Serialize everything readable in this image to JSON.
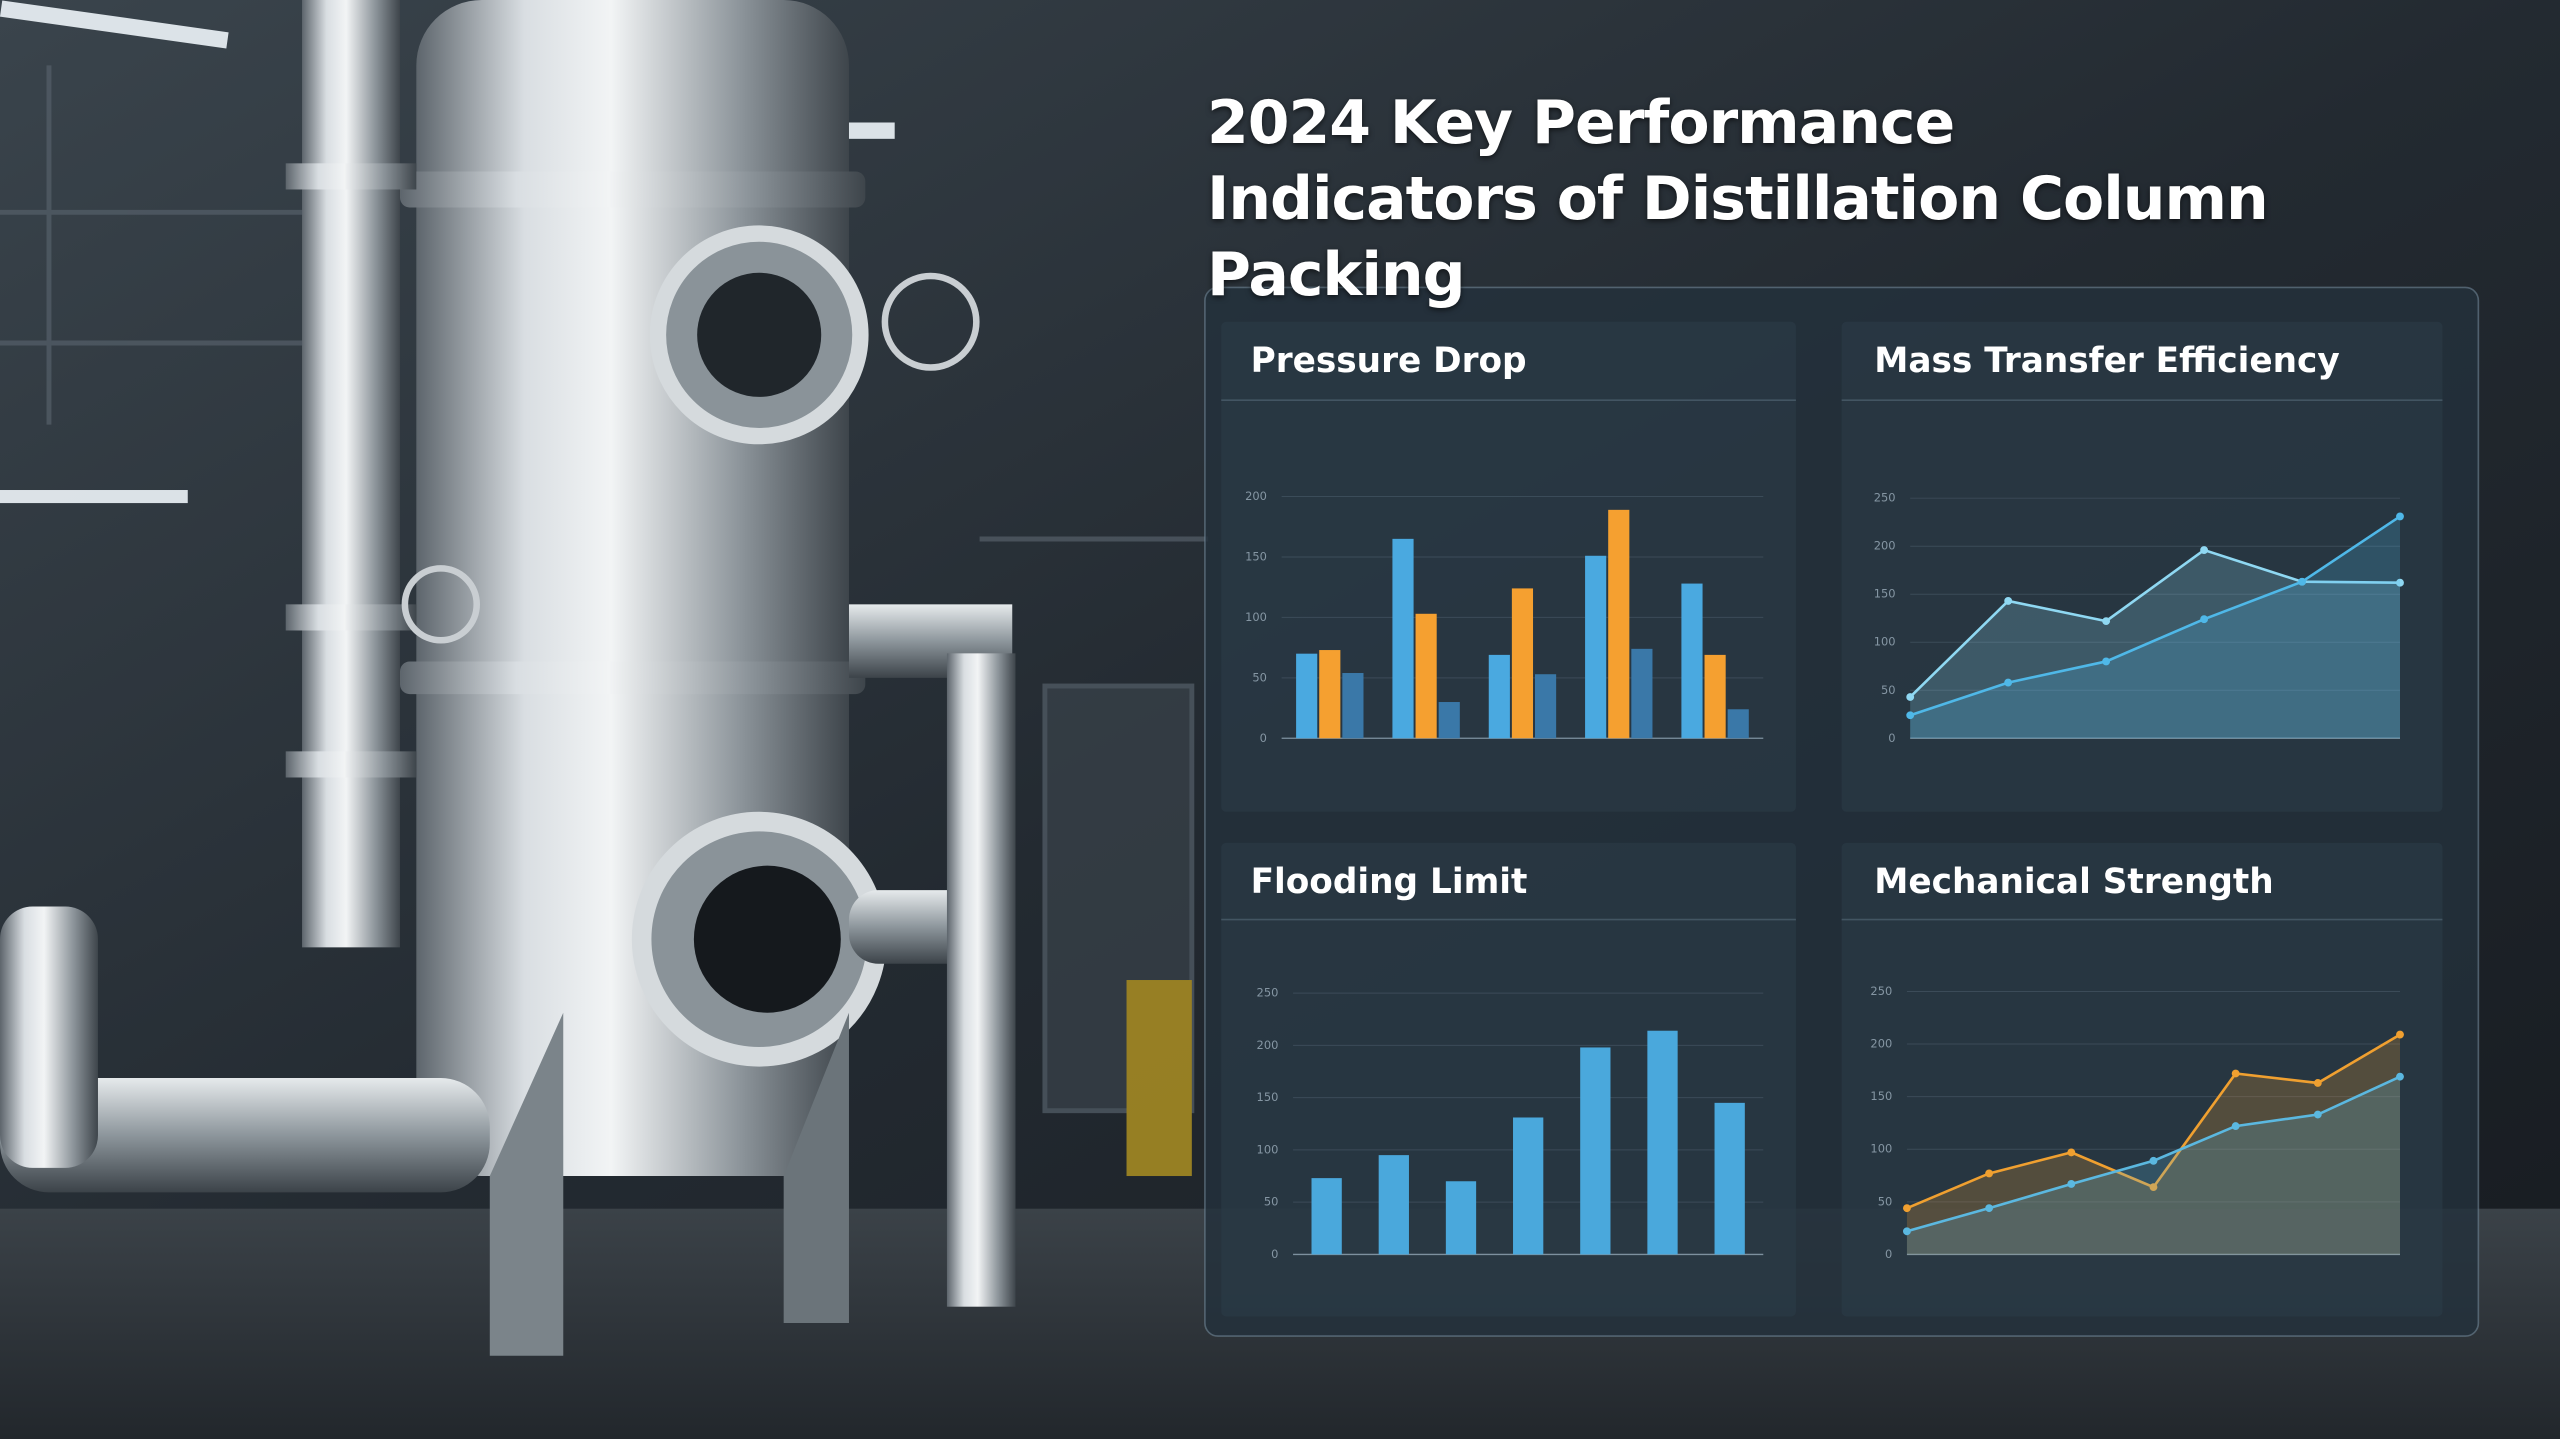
{
  "title": "2024 Key Performance Indicators of Distillation Column Packing",
  "chart_data": [
    {
      "type": "bar",
      "title": "Pressure Drop",
      "categories": [
        null,
        null,
        null,
        null,
        null
      ],
      "series": [
        {
          "color": "#4aa9e0",
          "values": [
            70,
            165,
            69,
            151,
            128
          ]
        },
        {
          "color": "#f5a030",
          "values": [
            73,
            103,
            124,
            189,
            69
          ]
        },
        {
          "color": "#3a78a8",
          "values": [
            54,
            30,
            53,
            74,
            24
          ]
        }
      ],
      "ylim": [
        0,
        200
      ],
      "yticks": [
        0,
        50,
        100,
        150,
        200
      ],
      "grid": true
    },
    {
      "type": "line",
      "title": "Mass Transfer Efficiency",
      "categories": [
        null,
        null,
        null,
        null,
        null,
        null
      ],
      "series": [
        {
          "color": "#8fd8f2",
          "values": [
            43,
            143,
            122,
            196,
            163,
            162
          ]
        },
        {
          "color": "#4fb8e8",
          "values": [
            24,
            58,
            80,
            124,
            163,
            231
          ]
        }
      ],
      "fill_area": true,
      "ylim": [
        0,
        250
      ],
      "yticks": [
        0,
        50,
        100,
        150,
        200,
        250
      ],
      "grid": true
    },
    {
      "type": "bar",
      "title": "Flooding Limit",
      "categories": [
        null,
        null,
        null,
        null,
        null,
        null,
        null
      ],
      "series": [
        {
          "color": "#4aa8dc",
          "values": [
            73,
            95,
            70,
            131,
            198,
            214,
            145
          ]
        }
      ],
      "ylim": [
        0,
        250
      ],
      "yticks": [
        0,
        50,
        100,
        150,
        200,
        250
      ],
      "grid": true
    },
    {
      "type": "line",
      "title": "Mechanical Strength",
      "categories": [
        null,
        null,
        null,
        null,
        null,
        null,
        null
      ],
      "series": [
        {
          "color": "#f0a030",
          "values": [
            44,
            77,
            97,
            64,
            172,
            163,
            209
          ]
        },
        {
          "color": "#5bb8e0",
          "values": [
            22,
            44,
            67,
            89,
            122,
            133,
            169
          ]
        }
      ],
      "fill_area": true,
      "ylim": [
        0,
        250
      ],
      "yticks": [
        0,
        50,
        100,
        150,
        200,
        250
      ],
      "grid": true
    }
  ]
}
